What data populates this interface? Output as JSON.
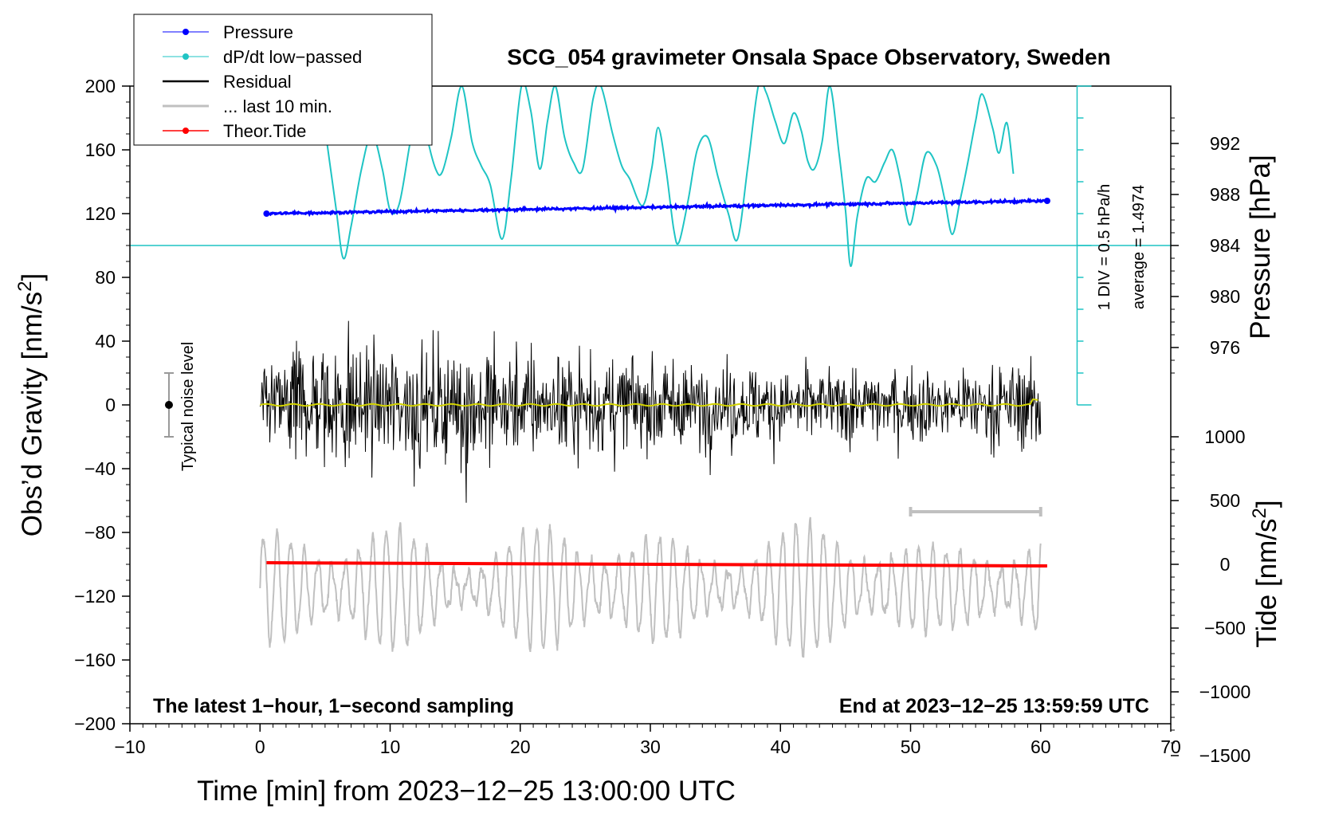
{
  "chart_data": {
    "type": "line",
    "title": "SCG_054 gravimeter Onsala Space Observatory, Sweden",
    "xlabel": "Time [min] from 2023−12−25 13:00:00 UTC",
    "ylabel_main": "Obs’d Gravity [nm/s",
    "ylabel_main_sup": "2",
    "ylabel_main_end": "]",
    "ylabel_pressure": "Pressure [hPa]",
    "ylabel_tide": "Tide [nm/s",
    "ylabel_tide_sup": "2",
    "ylabel_tide_end": "]",
    "xlim": [
      -10,
      70
    ],
    "ylim": [
      -200,
      200
    ],
    "x_ticks": [
      "−10",
      "0",
      "10",
      "20",
      "30",
      "40",
      "50",
      "60",
      "70"
    ],
    "x_tick_values": [
      -10,
      0,
      10,
      20,
      30,
      40,
      50,
      60,
      70
    ],
    "y_ticks": [
      "200",
      "160",
      "120",
      "80",
      "40",
      "0",
      "−40",
      "−80",
      "−120",
      "−160",
      "−200"
    ],
    "y_tick_values": [
      200,
      160,
      120,
      80,
      40,
      0,
      -40,
      -80,
      -120,
      -160,
      -200
    ],
    "pressure_ticks": [
      "992",
      "988",
      "984",
      "980",
      "976"
    ],
    "pressure_tick_values": [
      992,
      988,
      984,
      980,
      976
    ],
    "pressure_axis_map": {
      "p0": 984,
      "y0": 100,
      "hpa_per_nms2": 0.125
    },
    "tide_ticks": [
      "1000",
      "500",
      "0",
      "−500",
      "−1000",
      "−1500"
    ],
    "tide_tick_values": [
      1000,
      500,
      0,
      -500,
      -1000,
      -1500
    ],
    "tide_axis_map": {
      "t0": 0,
      "y0": -100,
      "nms2_per_nms2": 12.5
    },
    "series": [
      {
        "name": "Pressure",
        "color": "#0000ff",
        "x_range": [
          0.5,
          60.5
        ],
        "start_hpa": 986.5,
        "end_hpa": 987.5
      },
      {
        "name": "dP/dt low−passed",
        "color": "#1fc4c4",
        "baseline_y": 100,
        "scale_hpa_per_h_per_div": 0.5,
        "average": 1.4974,
        "points": [
          [
            4.8,
            185
          ],
          [
            5.8,
            126
          ],
          [
            6.4,
            92
          ],
          [
            7.0,
            112
          ],
          [
            7.8,
            148
          ],
          [
            8.6,
            170
          ],
          [
            9.4,
            148
          ],
          [
            10.0,
            122
          ],
          [
            10.7,
            126
          ],
          [
            11.5,
            163
          ],
          [
            12.3,
            200
          ],
          [
            12.8,
            170
          ],
          [
            13.5,
            148
          ],
          [
            14.0,
            146
          ],
          [
            14.7,
            168
          ],
          [
            15.5,
            200
          ],
          [
            16.3,
            165
          ],
          [
            17.0,
            150
          ],
          [
            17.7,
            138
          ],
          [
            18.6,
            104
          ],
          [
            19.3,
            142
          ],
          [
            20.1,
            200
          ],
          [
            20.8,
            185
          ],
          [
            21.5,
            148
          ],
          [
            22.1,
            178
          ],
          [
            22.7,
            200
          ],
          [
            23.4,
            168
          ],
          [
            24.1,
            152
          ],
          [
            24.8,
            148
          ],
          [
            25.6,
            192
          ],
          [
            26.2,
            200
          ],
          [
            27.1,
            170
          ],
          [
            27.8,
            150
          ],
          [
            28.4,
            142
          ],
          [
            29.4,
            125
          ],
          [
            30.1,
            148
          ],
          [
            30.6,
            174
          ],
          [
            31.2,
            148
          ],
          [
            31.8,
            110
          ],
          [
            32.2,
            102
          ],
          [
            32.9,
            128
          ],
          [
            33.6,
            160
          ],
          [
            34.4,
            168
          ],
          [
            35.2,
            143
          ],
          [
            36.0,
            120
          ],
          [
            36.7,
            104
          ],
          [
            37.5,
            150
          ],
          [
            38.3,
            200
          ],
          [
            38.9,
            196
          ],
          [
            39.6,
            178
          ],
          [
            40.3,
            164
          ],
          [
            41.0,
            183
          ],
          [
            41.6,
            172
          ],
          [
            42.1,
            153
          ],
          [
            42.6,
            148
          ],
          [
            43.2,
            165
          ],
          [
            43.8,
            200
          ],
          [
            44.5,
            158
          ],
          [
            45.0,
            122
          ],
          [
            45.4,
            87
          ],
          [
            45.9,
            118
          ],
          [
            46.6,
            142
          ],
          [
            47.3,
            140
          ],
          [
            48.0,
            152
          ],
          [
            48.6,
            160
          ],
          [
            49.2,
            142
          ],
          [
            49.9,
            113
          ],
          [
            50.5,
            132
          ],
          [
            51.2,
            158
          ],
          [
            52.0,
            150
          ],
          [
            52.6,
            130
          ],
          [
            53.2,
            107
          ],
          [
            53.8,
            128
          ],
          [
            54.4,
            152
          ],
          [
            55.0,
            178
          ],
          [
            55.5,
            195
          ],
          [
            56.3,
            174
          ],
          [
            56.8,
            158
          ],
          [
            57.4,
            177
          ],
          [
            57.9,
            145
          ]
        ]
      },
      {
        "name": "Residual",
        "color": "#000000",
        "x_range": [
          0,
          60
        ],
        "envelope": [
          [
            0,
            25
          ],
          [
            3,
            45
          ],
          [
            6,
            50
          ],
          [
            10,
            42
          ],
          [
            14,
            45
          ],
          [
            17,
            55
          ],
          [
            20,
            40
          ],
          [
            24,
            45
          ],
          [
            30,
            35
          ],
          [
            40,
            30
          ],
          [
            50,
            28
          ],
          [
            55,
            30
          ],
          [
            60,
            35
          ]
        ]
      },
      {
        "name": "... last 10 min.",
        "color": "#c0c0c0",
        "x_range": [
          50,
          60
        ],
        "bar_y": -67,
        "tide_center_y": -115
      },
      {
        "name": "Theor.Tide",
        "color": "#ff0000",
        "x_range": [
          0.5,
          60.5
        ],
        "start_y": -99,
        "end_y": -101
      }
    ],
    "residual_mean_color": "#d4d400",
    "noise": {
      "label": "Typical noise level",
      "x": -7,
      "y": 0,
      "half_range": 20
    },
    "annotations": {
      "bottom_left": "The latest 1−hour, 1−second sampling",
      "bottom_right": "End at 2023−12−25 13:59:59 UTC",
      "dpdt_div": "1 DIV = 0.5 hPa/h",
      "dpdt_avg": "average = 1.4974"
    },
    "legend_position": "top-left"
  }
}
